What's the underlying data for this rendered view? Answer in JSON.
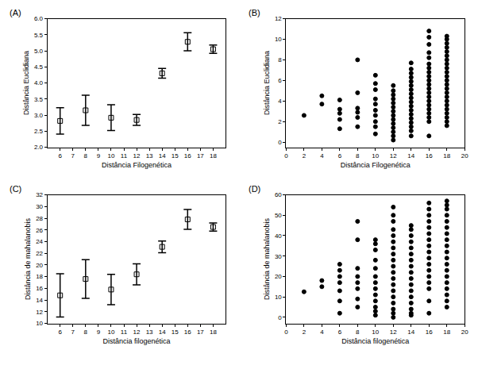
{
  "chart_data": [
    {
      "type": "scatter",
      "title": "(A)",
      "x_label": "Distância Filogenética",
      "y_label": "Distância Euclidiana",
      "x": [
        6,
        8,
        10,
        12,
        14,
        16,
        18
      ],
      "values": [
        2.82,
        3.15,
        2.92,
        2.85,
        4.3,
        5.28,
        5.05
      ],
      "error": [
        0.41,
        0.47,
        0.4,
        0.17,
        0.15,
        0.28,
        0.13
      ],
      "xlim": [
        5,
        19
      ],
      "xticks": [
        6,
        7,
        8,
        9,
        10,
        11,
        12,
        13,
        14,
        15,
        16,
        17,
        18
      ],
      "ylim": [
        2,
        6
      ],
      "yticks": [
        {
          "value": 2,
          "label": "2.0"
        },
        {
          "value": 2.5,
          "label": "2.5"
        },
        {
          "value": 3,
          "label": "3.0"
        },
        {
          "value": 3.5,
          "label": "3.5"
        },
        {
          "value": 4,
          "label": "4.0"
        },
        {
          "value": 4.5,
          "label": "4.5"
        },
        {
          "value": 5,
          "label": "5.0"
        },
        {
          "value": 5.5,
          "label": "5.5"
        },
        {
          "value": 6,
          "label": "6.0"
        }
      ],
      "marker": "square-open",
      "color": "#000000",
      "grid": false
    },
    {
      "type": "scatter",
      "title": "(B)",
      "x_label": "Distância Filogenética",
      "y_label": "Distância Euclidiana",
      "x": [
        2,
        4,
        4,
        6,
        6,
        6,
        6,
        6,
        8,
        8,
        8,
        8,
        8,
        8,
        10,
        10,
        10,
        10,
        10,
        10,
        10,
        10,
        10,
        10,
        12,
        12,
        12,
        12,
        12,
        12,
        12,
        12,
        12,
        12,
        12,
        12,
        12,
        12,
        14,
        14,
        14,
        14,
        14,
        14,
        14,
        14,
        14,
        14,
        14,
        14,
        14,
        14,
        14,
        14,
        14,
        14,
        16,
        16,
        16,
        16,
        16,
        16,
        16,
        16,
        16,
        16,
        16,
        16,
        16,
        16,
        16,
        16,
        16,
        16,
        16,
        16,
        16,
        18,
        18,
        18,
        18,
        18,
        18,
        18,
        18,
        18,
        18,
        18,
        18,
        18,
        18,
        18,
        18,
        18,
        18,
        18,
        18,
        18,
        18,
        18
      ],
      "values": [
        2.6,
        3.7,
        4.5,
        1.3,
        2.2,
        2.8,
        3.2,
        4.1,
        1.5,
        2.4,
        2.9,
        3.3,
        4.8,
        8.0,
        0.8,
        1.5,
        2.0,
        2.6,
        3.1,
        3.7,
        4.2,
        5.1,
        5.7,
        6.5,
        0.2,
        0.6,
        1.0,
        1.4,
        1.8,
        2.2,
        2.6,
        3.0,
        3.4,
        3.8,
        4.2,
        4.6,
        5.0,
        5.5,
        0.6,
        1.1,
        1.5,
        1.9,
        2.3,
        2.7,
        3.1,
        3.5,
        3.9,
        4.3,
        4.7,
        5.1,
        5.5,
        5.9,
        6.3,
        6.7,
        7.1,
        7.7,
        0.6,
        2.0,
        2.4,
        2.8,
        3.2,
        3.6,
        4.0,
        4.4,
        4.8,
        5.2,
        5.6,
        6.0,
        6.4,
        6.8,
        7.2,
        7.6,
        8.2,
        8.7,
        9.5,
        10.2,
        10.8,
        1.6,
        2.0,
        2.4,
        2.8,
        3.2,
        3.6,
        4.0,
        4.4,
        4.8,
        5.2,
        5.6,
        6.0,
        6.4,
        6.8,
        7.2,
        7.6,
        8.0,
        8.4,
        8.8,
        9.2,
        9.6,
        10.0,
        10.3
      ],
      "xlim": [
        0,
        20
      ],
      "xticks": [
        0,
        2,
        4,
        6,
        8,
        10,
        12,
        14,
        16,
        18,
        20
      ],
      "ylim": [
        -0.5,
        12
      ],
      "yticks": [
        0,
        2,
        4,
        6,
        8,
        10,
        12
      ],
      "marker": "circle",
      "color": "#000000",
      "grid": false
    },
    {
      "type": "scatter",
      "title": "(C)",
      "x_label": "Distância filogenética",
      "y_label": "Distância de mahalanobis",
      "x": [
        6,
        8,
        10,
        12,
        14,
        16,
        18
      ],
      "values": [
        14.8,
        17.6,
        15.8,
        18.4,
        23.1,
        27.8,
        26.5
      ],
      "error": [
        3.7,
        3.3,
        2.6,
        1.8,
        1.0,
        1.7,
        0.7
      ],
      "xlim": [
        5,
        19
      ],
      "xticks": [
        6,
        7,
        8,
        9,
        10,
        11,
        12,
        13,
        14,
        15,
        16,
        17,
        18
      ],
      "ylim": [
        10,
        32
      ],
      "yticks": [
        10,
        12,
        14,
        16,
        18,
        20,
        22,
        24,
        26,
        28,
        30,
        32
      ],
      "marker": "square-open",
      "color": "#000000",
      "grid": false
    },
    {
      "type": "scatter",
      "title": "(D)",
      "x_label": "Distância filogenética",
      "y_label": "Distância de mahalanobis",
      "x": [
        2,
        4,
        4,
        6,
        6,
        6,
        6,
        6,
        6,
        6,
        8,
        8,
        8,
        8,
        8,
        8,
        8,
        8,
        10,
        10,
        10,
        10,
        10,
        10,
        10,
        10,
        10,
        10,
        10,
        10,
        10,
        12,
        12,
        12,
        12,
        12,
        12,
        12,
        12,
        12,
        12,
        12,
        12,
        12,
        12,
        12,
        12,
        12,
        12,
        12,
        14,
        14,
        14,
        14,
        14,
        14,
        14,
        14,
        14,
        14,
        14,
        14,
        14,
        14,
        14,
        14,
        14,
        16,
        16,
        16,
        16,
        16,
        16,
        16,
        16,
        16,
        16,
        16,
        16,
        16,
        16,
        16,
        16,
        16,
        18,
        18,
        18,
        18,
        18,
        18,
        18,
        18,
        18,
        18,
        18,
        18,
        18,
        18,
        18,
        18,
        18,
        18,
        18
      ],
      "values": [
        12.5,
        15,
        18,
        2,
        8,
        13,
        17,
        20,
        23,
        26,
        5,
        9,
        14,
        17,
        20,
        24,
        38,
        47,
        1,
        3,
        5,
        8,
        11,
        14,
        17,
        20,
        24,
        28,
        33,
        36,
        38,
        0,
        2,
        4,
        7,
        10,
        13,
        16,
        19,
        22,
        25,
        28,
        31,
        34,
        37,
        40,
        43,
        47,
        50,
        54,
        1,
        2,
        4,
        7,
        10,
        13,
        16,
        19,
        22,
        25,
        28,
        31,
        34,
        37,
        40,
        43,
        45,
        2,
        8,
        14,
        17,
        20,
        23,
        26,
        29,
        32,
        35,
        38,
        41,
        44,
        47,
        50,
        53,
        56,
        5,
        8,
        11,
        14,
        17,
        20,
        23,
        26,
        29,
        32,
        35,
        38,
        41,
        44,
        47,
        50,
        53,
        55,
        57
      ],
      "xlim": [
        0,
        20
      ],
      "xticks": [
        0,
        2,
        4,
        6,
        8,
        10,
        12,
        14,
        16,
        18,
        20
      ],
      "ylim": [
        -3,
        60
      ],
      "yticks": [
        0,
        10,
        20,
        30,
        40,
        50,
        60
      ],
      "marker": "circle",
      "color": "#000000",
      "grid": false
    }
  ]
}
